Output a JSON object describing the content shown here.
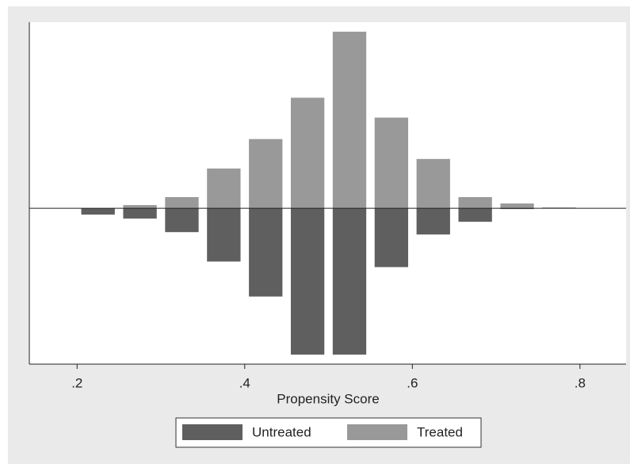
{
  "chart_data": {
    "type": "histogram",
    "xlabel": "Propensity Score",
    "bins": [
      0.2,
      0.25,
      0.3,
      0.35,
      0.4,
      0.45,
      0.5,
      0.55,
      0.6,
      0.65,
      0.7,
      0.75,
      0.8
    ],
    "series": [
      {
        "name": "Untreated",
        "color": "#5f5f5f",
        "values": [
          -0.8,
          -1.3,
          -3.0,
          -6.7,
          -11.1,
          -18.4,
          -18.4,
          -7.4,
          -3.3,
          -1.7,
          -0.1,
          0
        ]
      },
      {
        "name": "Treated",
        "color": "#999999",
        "values": [
          0,
          0.4,
          1.4,
          5.0,
          8.7,
          13.9,
          22.2,
          11.4,
          6.2,
          1.4,
          0.6,
          0.1
        ]
      }
    ],
    "xlim": [
      0.143,
      0.855
    ],
    "ylim": [
      -19.6,
      23.4
    ],
    "xticks": [
      {
        "value": 0.2,
        "label": ".2"
      },
      {
        "value": 0.4,
        "label": ".4"
      },
      {
        "value": 0.6,
        "label": ".6"
      },
      {
        "value": 0.8,
        "label": ".8"
      }
    ]
  }
}
